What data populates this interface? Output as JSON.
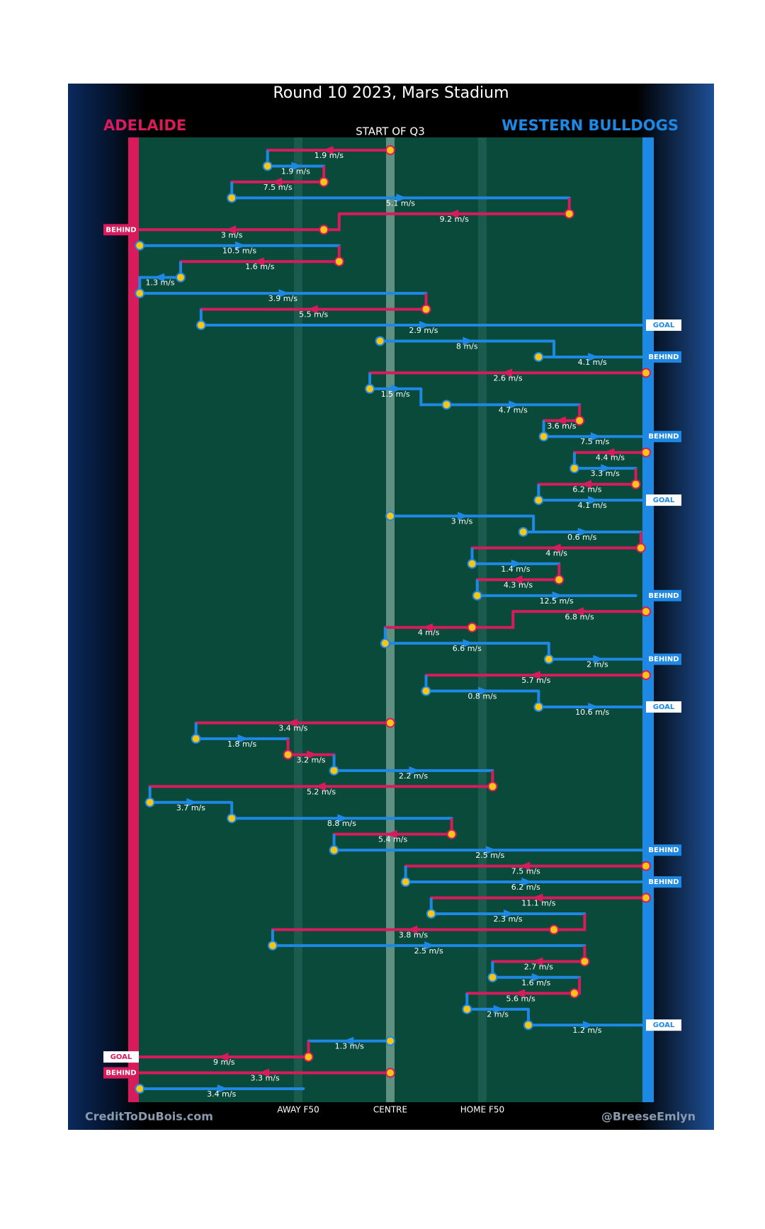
{
  "chart_data": {
    "type": "possession-chain",
    "title": "Round 10 2023, Mars Stadium",
    "subtitle": "START OF Q3",
    "teams": [
      {
        "name": "ADELAIDE",
        "color": "#d81b5a"
      },
      {
        "name": "WESTERN BULLDOGS",
        "color": "#1e88e5"
      }
    ],
    "xlim": [
      0,
      100
    ],
    "xticks": [
      {
        "value": 32,
        "label": "AWAY F50"
      },
      {
        "value": 50,
        "label": "CENTRE"
      },
      {
        "value": 68,
        "label": "HOME F50"
      }
    ],
    "credit_left": "CreditToDuBois.com",
    "credit_right": "@BreeseEmlyn",
    "kicks": [
      {
        "team": 0,
        "from": 50,
        "to": 26,
        "label": "1.9 m/s"
      },
      {
        "team": 1,
        "from": 26,
        "to": 37,
        "label": "1.9 m/s"
      },
      {
        "team": 0,
        "from": 37,
        "to": 19,
        "label": "7.5 m/s"
      },
      {
        "team": 1,
        "from": 19,
        "to": 85,
        "label": "5.1 m/s"
      },
      {
        "team": 0,
        "from": 85,
        "to": 40,
        "label": "9.2 m/s"
      },
      {
        "team": 0,
        "from": 37,
        "to": 1,
        "label": "3 m/s",
        "result": "BEHIND"
      },
      {
        "team": 1,
        "from": 1,
        "to": 40,
        "label": "10.5 m/s"
      },
      {
        "team": 0,
        "from": 40,
        "to": 9,
        "label": "1.6 m/s"
      },
      {
        "team": 1,
        "from": 9,
        "to": 1,
        "label": "1.3 m/s"
      },
      {
        "team": 1,
        "from": 1,
        "to": 57,
        "label": "3.9 m/s"
      },
      {
        "team": 0,
        "from": 57,
        "to": 13,
        "label": "5.5 m/s"
      },
      {
        "team": 1,
        "from": 13,
        "to": 100,
        "label": "2.9 m/s",
        "result": "GOAL"
      },
      {
        "team": 1,
        "from": 48,
        "to": 82,
        "label": "8 m/s"
      },
      {
        "team": 1,
        "from": 79,
        "to": 100,
        "label": "4.1 m/s",
        "result": "BEHIND"
      },
      {
        "team": 0,
        "from": 100,
        "to": 46,
        "label": "2.6 m/s"
      },
      {
        "team": 1,
        "from": 46,
        "to": 56,
        "label": "1.5 m/s"
      },
      {
        "team": 1,
        "from": 61,
        "to": 87,
        "label": "4.7 m/s"
      },
      {
        "team": 0,
        "from": 87,
        "to": 80,
        "label": "3.6 m/s"
      },
      {
        "team": 1,
        "from": 80,
        "to": 100,
        "label": "7.5 m/s",
        "result": "BEHIND"
      },
      {
        "team": 0,
        "from": 100,
        "to": 86,
        "label": "4.4 m/s"
      },
      {
        "team": 1,
        "from": 86,
        "to": 98,
        "label": "3.3 m/s"
      },
      {
        "team": 0,
        "from": 98,
        "to": 79,
        "label": "6.2 m/s"
      },
      {
        "team": 1,
        "from": 79,
        "to": 100,
        "label": "4.1 m/s",
        "result": "GOAL"
      },
      {
        "team": 1,
        "from": 50,
        "to": 78,
        "label": "3 m/s"
      },
      {
        "team": 1,
        "from": 76,
        "to": 99,
        "label": "0.6 m/s"
      },
      {
        "team": 0,
        "from": 99,
        "to": 66,
        "label": "4 m/s"
      },
      {
        "team": 1,
        "from": 66,
        "to": 83,
        "label": "1.4 m/s"
      },
      {
        "team": 0,
        "from": 83,
        "to": 67,
        "label": "4.3 m/s"
      },
      {
        "team": 1,
        "from": 67,
        "to": 98,
        "label": "12.5 m/s",
        "result": "BEHIND"
      },
      {
        "team": 0,
        "from": 100,
        "to": 74,
        "label": "6.8 m/s"
      },
      {
        "team": 0,
        "from": 66,
        "to": 49,
        "label": "4 m/s"
      },
      {
        "team": 1,
        "from": 49,
        "to": 81,
        "label": "6.6 m/s"
      },
      {
        "team": 1,
        "from": 81,
        "to": 100,
        "label": "2 m/s",
        "result": "BEHIND"
      },
      {
        "team": 0,
        "from": 100,
        "to": 57,
        "label": "5.7 m/s"
      },
      {
        "team": 1,
        "from": 57,
        "to": 79,
        "label": "0.8 m/s"
      },
      {
        "team": 1,
        "from": 79,
        "to": 100,
        "label": "10.6 m/s",
        "result": "GOAL"
      },
      {
        "team": 0,
        "from": 50,
        "to": 12,
        "label": "3.4 m/s"
      },
      {
        "team": 1,
        "from": 12,
        "to": 30,
        "label": "1.8 m/s"
      },
      {
        "team": 0,
        "from": 30,
        "to": 39,
        "label": "3.2 m/s"
      },
      {
        "team": 1,
        "from": 39,
        "to": 70,
        "label": "2.2 m/s"
      },
      {
        "team": 0,
        "from": 70,
        "to": 3,
        "label": "5.2 m/s"
      },
      {
        "team": 1,
        "from": 3,
        "to": 19,
        "label": "3.7 m/s"
      },
      {
        "team": 1,
        "from": 19,
        "to": 62,
        "label": "8.8 m/s"
      },
      {
        "team": 0,
        "from": 62,
        "to": 39,
        "label": "5.4 m/s"
      },
      {
        "team": 1,
        "from": 39,
        "to": 100,
        "label": "2.5 m/s",
        "result": "BEHIND"
      },
      {
        "team": 0,
        "from": 100,
        "to": 53,
        "label": "7.5 m/s"
      },
      {
        "team": 1,
        "from": 53,
        "to": 100,
        "label": "6.2 m/s",
        "result": "BEHIND"
      },
      {
        "team": 0,
        "from": 100,
        "to": 58,
        "label": "11.1 m/s"
      },
      {
        "team": 1,
        "from": 58,
        "to": 88,
        "label": "2.3 m/s"
      },
      {
        "team": 0,
        "from": 82,
        "to": 27,
        "label": "3.8 m/s"
      },
      {
        "team": 1,
        "from": 27,
        "to": 88,
        "label": "2.5 m/s"
      },
      {
        "team": 0,
        "from": 88,
        "to": 70,
        "label": "2.7 m/s"
      },
      {
        "team": 1,
        "from": 70,
        "to": 87,
        "label": "1.6 m/s"
      },
      {
        "team": 0,
        "from": 86,
        "to": 65,
        "label": "5.6 m/s"
      },
      {
        "team": 1,
        "from": 65,
        "to": 77,
        "label": "2 m/s"
      },
      {
        "team": 1,
        "from": 77,
        "to": 100,
        "label": "1.2 m/s",
        "result": "GOAL"
      },
      {
        "team": 1,
        "from": 50,
        "to": 34,
        "label": "1.3 m/s"
      },
      {
        "team": 0,
        "from": 34,
        "to": 1,
        "label": "9 m/s",
        "result": "GOAL"
      },
      {
        "team": 0,
        "from": 50,
        "to": 1,
        "label": "3.3 m/s",
        "result": "BEHIND"
      },
      {
        "team": 1,
        "from": 1,
        "to": 33,
        "label": "3.4 m/s"
      }
    ]
  }
}
